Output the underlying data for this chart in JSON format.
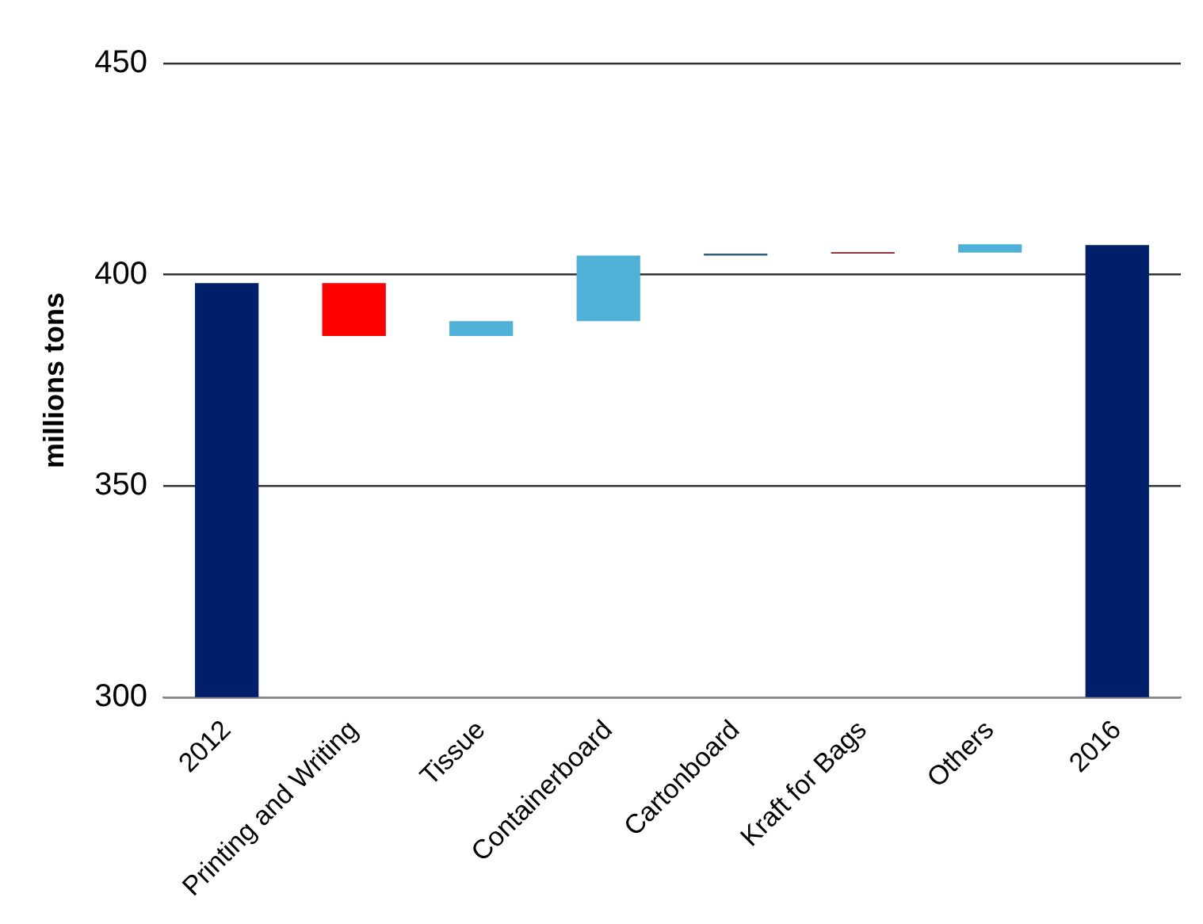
{
  "chart_data": {
    "type": "bar",
    "ylabel": "millions tons",
    "categories": [
      "2012",
      "Printing and Writing",
      "Tissue",
      "Containerboard",
      "Cartonboard",
      "Kraft for Bags",
      "Others",
      "2016"
    ],
    "values": [
      398,
      -12.5,
      3.5,
      15.5,
      0.5,
      0.3,
      2,
      407
    ],
    "base": [
      null,
      398,
      385.5,
      389,
      404.5,
      405,
      405.2,
      null
    ],
    "colors": [
      "#001f6b",
      "#ff0000",
      "#4fb0d8",
      "#4fb0d8",
      "#2f5f7a",
      "#8b1a1a",
      "#4fb0d8",
      "#001f6b"
    ],
    "ylim": [
      300,
      450
    ],
    "yticks": [
      300,
      350,
      400,
      450
    ],
    "grid": "y",
    "legend": false
  }
}
